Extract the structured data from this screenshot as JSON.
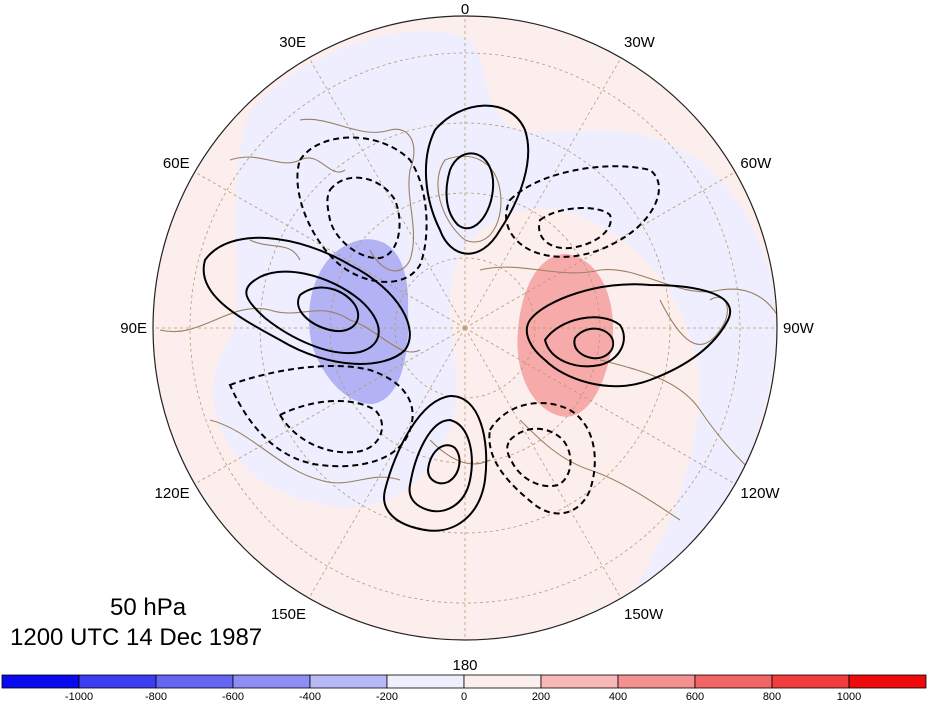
{
  "map": {
    "longitude_labels": [
      {
        "id": "lon-0",
        "text": "0",
        "angle_deg": 0
      },
      {
        "id": "lon-30w",
        "text": "30W",
        "angle_deg": 30
      },
      {
        "id": "lon-60w",
        "text": "60W",
        "angle_deg": 60
      },
      {
        "id": "lon-90w",
        "text": "90W",
        "angle_deg": 90
      },
      {
        "id": "lon-120w",
        "text": "120W",
        "angle_deg": 120
      },
      {
        "id": "lon-150w",
        "text": "150W",
        "angle_deg": 150
      },
      {
        "id": "lon-180",
        "text": "180",
        "angle_deg": 180
      },
      {
        "id": "lon-150e",
        "text": "150E",
        "angle_deg": 210
      },
      {
        "id": "lon-120e",
        "text": "120E",
        "angle_deg": 240
      },
      {
        "id": "lon-90e",
        "text": "90E",
        "angle_deg": 270
      },
      {
        "id": "lon-60e",
        "text": "60E",
        "angle_deg": 300
      },
      {
        "id": "lon-30e",
        "text": "30E",
        "angle_deg": 330
      }
    ],
    "colors": {
      "disk_outline": "#222222",
      "grid": "#b99a72",
      "coast": "#9a8060",
      "contour": "#000000",
      "shade_neg_light": "#eeeeff",
      "shade_pos_light": "#fdeeee",
      "shade_neg_strong": "#b2b2f4",
      "shade_pos_strong": "#f6aaaa"
    }
  },
  "info": {
    "level": "50 hPa",
    "timestamp": "1200 UTC 14 Dec 1987"
  },
  "colorbar": {
    "boxes": [
      "#0a0aee",
      "#3c3cf0",
      "#6565f2",
      "#8d8df4",
      "#b8b8f7",
      "#eeeefd",
      "#fdeeee",
      "#f8b8b8",
      "#f49090",
      "#f26565",
      "#f03c3c",
      "#ee0a0a"
    ],
    "labels": [
      "-1000",
      "-800",
      "-600",
      "-400",
      "-200",
      "0",
      "200",
      "400",
      "600",
      "800",
      "1000"
    ]
  }
}
